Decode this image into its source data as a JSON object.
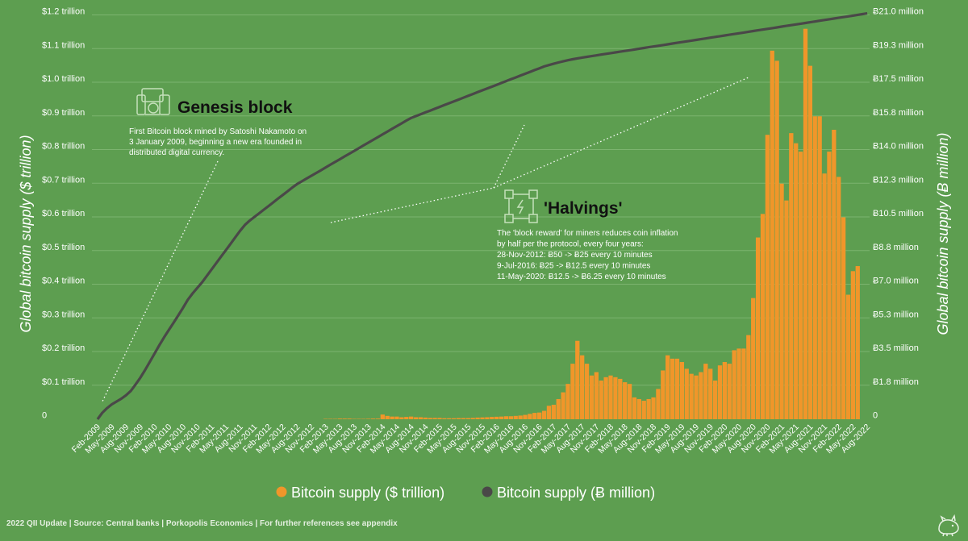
{
  "chart_data": {
    "type": "bar+line",
    "ylabel_left": "Global bitcoin supply ($ trillion)",
    "ylabel_right": "Global bitcoin supply (Ƀ million)",
    "left_ticks": [
      "0",
      "$0.1 trillion",
      "$0.2 trillion",
      "$0.3 trillion",
      "$0.4 trillion",
      "$0.5 trillion",
      "$0.6 trillion",
      "$0.7 trillion",
      "$0.8 trillion",
      "$0.9 trillion",
      "$1.0 trillion",
      "$1.1 trillion",
      "$1.2 trillion"
    ],
    "left_tick_values": [
      0,
      0.1,
      0.2,
      0.3,
      0.4,
      0.5,
      0.6,
      0.7,
      0.8,
      0.9,
      1.0,
      1.1,
      1.2
    ],
    "right_ticks": [
      "0",
      "Ƀ1.8 million",
      "Ƀ3.5 million",
      "Ƀ5.3 million",
      "Ƀ7.0 million",
      "Ƀ8.8 million",
      "Ƀ10.5 million",
      "Ƀ12.3 million",
      "Ƀ14.0 million",
      "Ƀ15.8 million",
      "Ƀ17.5 million",
      "Ƀ19.3 million",
      "Ƀ21.0 million"
    ],
    "ylim_left": [
      0,
      1.2
    ],
    "ylim_right": [
      0,
      21
    ],
    "x_labels": [
      "Feb-2009",
      "May-2009",
      "Aug-2009",
      "Nov-2009",
      "Feb-2010",
      "May-2010",
      "Aug-2010",
      "Nov-2010",
      "Feb-2011",
      "May-2011",
      "Aug-2011",
      "Nov-2011",
      "Feb-2012",
      "May-2012",
      "Aug-2012",
      "Nov-2012",
      "Feb-2013",
      "May-2013",
      "Aug-2013",
      "Nov-2013",
      "Feb-2014",
      "May-2014",
      "Aug-2014",
      "Nov-2014",
      "Feb-2015",
      "May-2015",
      "Aug-2015",
      "Nov-2015",
      "Feb-2016",
      "May-2016",
      "Aug-2016",
      "Nov-2016",
      "Feb-2017",
      "May-2017",
      "Aug-2017",
      "Nov-2017",
      "Feb-2018",
      "May-2018",
      "Aug-2018",
      "Nov-2018",
      "Feb-2019",
      "May-2019",
      "Aug-2019",
      "Nov-2019",
      "Feb-2020",
      "May-2020",
      "Aug-2020",
      "Nov-2020",
      "Feb-2021",
      "May-2021",
      "Aug-2021",
      "Nov-2021",
      "Feb-2022",
      "May-2022",
      "Aug-2022"
    ],
    "series": [
      {
        "name": "Bitcoin supply ($ trillion)",
        "type": "bar",
        "axis": "left",
        "color": "#f0962a",
        "start_month": "Feb-2013",
        "values": [
          0.001,
          0.001,
          0.001,
          0.002,
          0.002,
          0.002,
          0.001,
          0.001,
          0.001,
          0.0015,
          0.002,
          0.002,
          0.014,
          0.01,
          0.008,
          0.008,
          0.006,
          0.007,
          0.008,
          0.006,
          0.006,
          0.005,
          0.004,
          0.004,
          0.004,
          0.003,
          0.003,
          0.003,
          0.0035,
          0.0035,
          0.0035,
          0.004,
          0.005,
          0.0055,
          0.006,
          0.007,
          0.0075,
          0.008,
          0.009,
          0.009,
          0.01,
          0.011,
          0.013,
          0.016,
          0.019,
          0.02,
          0.025,
          0.04,
          0.043,
          0.06,
          0.08,
          0.105,
          0.165,
          0.233,
          0.19,
          0.165,
          0.13,
          0.14,
          0.115,
          0.125,
          0.13,
          0.125,
          0.12,
          0.11,
          0.105,
          0.065,
          0.06,
          0.055,
          0.06,
          0.065,
          0.09,
          0.145,
          0.19,
          0.18,
          0.18,
          0.17,
          0.15,
          0.135,
          0.13,
          0.14,
          0.165,
          0.15,
          0.115,
          0.16,
          0.17,
          0.165,
          0.205,
          0.21,
          0.21,
          0.25,
          0.36,
          0.54,
          0.61,
          0.845,
          1.095,
          1.065,
          0.7,
          0.65,
          0.85,
          0.82,
          0.795,
          1.16,
          1.05,
          0.9,
          0.9,
          0.73,
          0.795,
          0.86,
          0.72,
          0.6,
          0.37,
          0.44,
          0.455
        ]
      },
      {
        "name": "Bitcoin supply (Ƀ million)",
        "type": "line",
        "axis": "right",
        "color": "#4a4848",
        "start_month": "Feb-2009",
        "values": [
          0.0,
          0.35,
          0.6,
          0.8,
          0.95,
          1.1,
          1.3,
          1.55,
          1.95,
          2.3,
          2.75,
          3.2,
          3.65,
          4.1,
          4.5,
          4.9,
          5.3,
          5.7,
          6.15,
          6.5,
          6.8,
          7.1,
          7.45,
          7.8,
          8.15,
          8.5,
          8.85,
          9.2,
          9.55,
          9.9,
          10.2,
          10.4,
          10.6,
          10.8,
          11.0,
          11.2,
          11.4,
          11.6,
          11.8,
          12.0,
          12.2,
          12.35,
          12.5,
          12.65,
          12.8,
          12.95,
          13.1,
          13.25,
          13.4,
          13.55,
          13.7,
          13.85,
          14.0,
          14.15,
          14.3,
          14.45,
          14.6,
          14.75,
          14.9,
          15.05,
          15.2,
          15.35,
          15.5,
          15.65,
          15.75,
          15.85,
          15.95,
          16.05,
          16.15,
          16.25,
          16.35,
          16.45,
          16.55,
          16.65,
          16.75,
          16.85,
          16.95,
          17.05,
          17.15,
          17.25,
          17.35,
          17.45,
          17.55,
          17.65,
          17.75,
          17.85,
          17.95,
          18.05,
          18.15,
          18.25,
          18.35,
          18.42,
          18.49,
          18.56,
          18.62,
          18.68,
          18.73,
          18.78,
          18.82,
          18.86,
          18.9,
          18.94,
          18.98,
          19.02,
          19.06,
          19.1,
          19.14,
          19.18,
          19.22,
          19.26,
          19.3,
          19.34,
          19.38,
          19.42,
          19.46,
          19.5,
          19.54,
          19.58,
          19.62,
          19.66,
          19.7,
          19.74,
          19.78,
          19.82,
          19.86,
          19.9,
          19.94,
          19.98,
          20.02,
          20.06,
          20.1,
          20.14,
          20.18,
          20.22,
          20.26,
          20.3,
          20.34,
          20.38,
          20.42,
          20.46,
          20.5,
          20.54,
          20.58,
          20.62,
          20.66,
          20.7,
          20.74,
          20.78,
          20.82,
          20.86,
          20.9,
          20.94,
          20.98,
          21.02,
          21.06,
          21.1
        ]
      }
    ],
    "legend_placement": "bottom-center",
    "annotations": {
      "genesis_title": "Genesis block",
      "genesis_text": [
        "First Bitcoin block mined by Satoshi Nakamoto on",
        "3 January 2009, beginning a new era founded in",
        "distributed digital currency."
      ],
      "halvings_title": "'Halvings'",
      "halvings_text": [
        "The 'block reward' for miners reduces coin inflation",
        "by half per the protocol, every four years:",
        "28-Nov-2012: Ƀ50 -> Ƀ25 every 10 minutes",
        "9-Jul-2016: Ƀ25 -> Ƀ12.5 every 10 minutes",
        "11-May-2020: Ƀ12.5 -> Ƀ6.25 every 10 minutes"
      ]
    }
  },
  "footer": "2022 QII Update | Source: Central banks | Porkopolis Economics | For further references see appendix",
  "colors": {
    "background": "#5d9e50",
    "bar": "#f0962a",
    "line": "#4a4848",
    "icon": "#c5e0bb"
  },
  "icons": [
    "genesis-block-icon",
    "halvings-network-icon",
    "porkopolis-logo"
  ]
}
